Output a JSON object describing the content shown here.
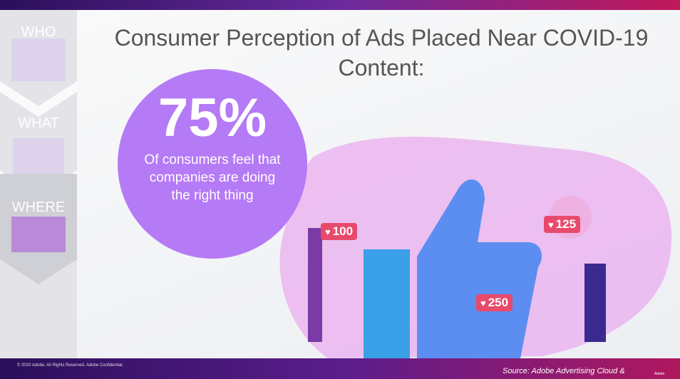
{
  "nav": [
    "WHO",
    "WHAT",
    "WHERE"
  ],
  "title": "Consumer Perception of Ads Placed Near COVID-19 Content:",
  "stat": {
    "value": "75%",
    "caption": "Of consumers feel that companies are doing the right thing"
  },
  "badges": [
    "100",
    "125",
    "250"
  ],
  "footer": "© 2020 Adobe.  All Rights Reserved.  Adobe Confidential.",
  "source": "Source: Adobe Advertising Cloud &",
  "logo": "Adobe"
}
